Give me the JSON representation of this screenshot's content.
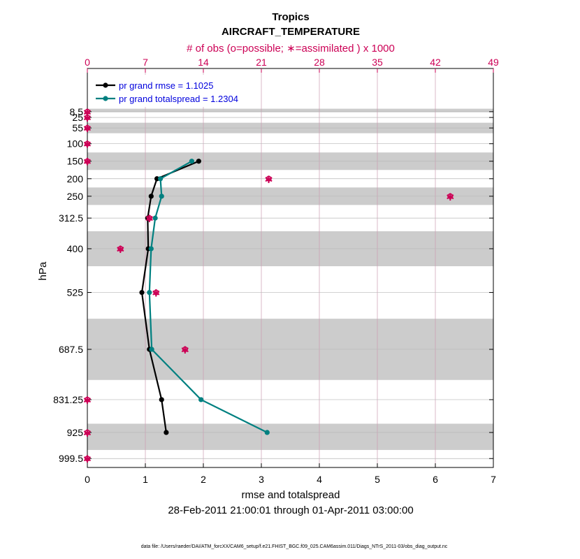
{
  "chart_data": {
    "type": "line",
    "title": "Tropics",
    "subtitle": "AIRCRAFT_TEMPERATURE",
    "top_axis_label": "# of obs (o=possible; ∗=assimilated ) x 1000",
    "top_ticks": [
      "0",
      "7",
      "14",
      "21",
      "28",
      "35",
      "42",
      "49"
    ],
    "top_xlim": [
      0,
      49
    ],
    "xlabel": "rmse and totalspread",
    "xlim": [
      0,
      7
    ],
    "xticks": [
      "0",
      "1",
      "2",
      "3",
      "4",
      "5",
      "6",
      "7"
    ],
    "ylabel": "hPa",
    "yaxis_reversed": true,
    "ylim": [
      1025,
      -115
    ],
    "ytick_labels": [
      "8.5",
      "25",
      "55",
      "100",
      "150",
      "200",
      "250",
      "312.5",
      "400",
      "525",
      "687.5",
      "831.25",
      "925",
      "999.5"
    ],
    "ytick_values": [
      8.5,
      25,
      55,
      100,
      150,
      200,
      250,
      312.5,
      400,
      525,
      687.5,
      831.25,
      925,
      999.5
    ],
    "shaded_layers_hPa": [
      [
        0,
        10
      ],
      [
        40,
        70
      ],
      [
        125,
        175
      ],
      [
        225,
        275
      ],
      [
        350,
        450
      ],
      [
        600,
        775
      ],
      [
        900,
        975
      ]
    ],
    "date_range": "28-Feb-2011 21:00:01 through 01-Apr-2011 03:00:00",
    "footnote": "data file: /Users/raeder/DAI/ATM_forcXX/CAM6_setup/f.e21.FHIST_BGC.f09_025.CAM6assim.011/Diags_NTrS_2011-03/obs_diag_output.nc",
    "legend_position": "top-left",
    "series": [
      {
        "name": "pr grand rmse = 1.1025",
        "color": "#000000",
        "y": [
          150,
          200,
          250,
          312.5,
          400,
          525,
          687.5,
          831.25,
          925
        ],
        "x": [
          1.92,
          1.2,
          1.1,
          1.04,
          1.05,
          0.94,
          1.07,
          1.28,
          1.36
        ]
      },
      {
        "name": "pr grand totalspread = 1.2304",
        "color": "#008080",
        "y": [
          150,
          200,
          250,
          312.5,
          400,
          525,
          687.5,
          831.25,
          925
        ],
        "x": [
          1.8,
          1.26,
          1.28,
          1.17,
          1.1,
          1.07,
          1.11,
          1.96,
          3.1
        ]
      }
    ],
    "obs_counts": {
      "color": "#cc0055",
      "y": [
        8.5,
        25,
        55,
        100,
        150,
        200,
        250,
        312.5,
        400,
        525,
        687.5,
        831.25,
        925,
        999.5
      ],
      "possible_x1000": [
        0,
        0,
        0,
        0,
        0,
        21.9,
        43.8,
        7.5,
        4.0,
        8.3,
        11.8,
        0,
        0,
        0
      ],
      "assimilated_x1000": [
        0,
        0,
        0,
        0,
        0,
        21.9,
        43.8,
        7.5,
        4.0,
        8.3,
        11.8,
        0,
        0,
        0
      ]
    }
  }
}
